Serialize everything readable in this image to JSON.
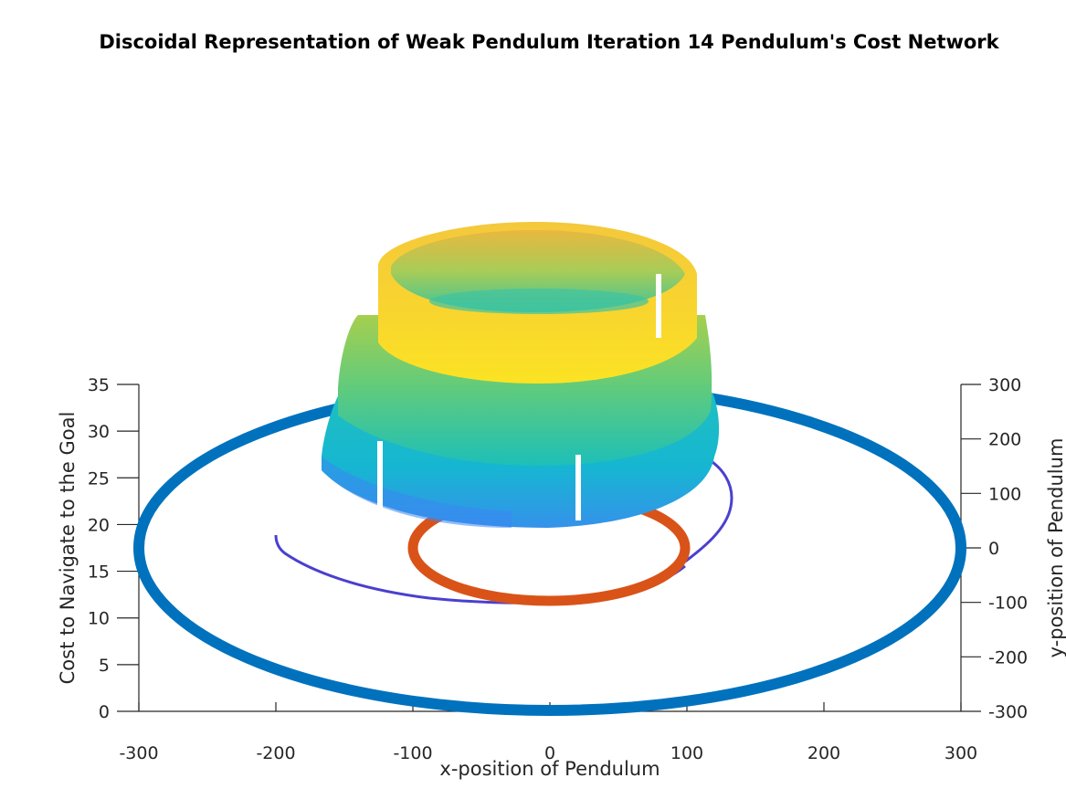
{
  "chart_data": {
    "type": "surface-3d",
    "title": "Discoidal Representation of Weak Pendulum Iteration 14 Pendulum's Cost Network",
    "xlabel": "x-position of Pendulum",
    "ylabel": "y-position of Pendulum",
    "zlabel": "Cost to Navigate to the Goal",
    "xlim": [
      -300,
      300
    ],
    "ylim": [
      -300,
      300
    ],
    "zlim": [
      0,
      35
    ],
    "x_ticks": [
      "-300",
      "-200",
      "-100",
      "0",
      "100",
      "200",
      "300"
    ],
    "y_ticks": [
      "300",
      "200",
      "100",
      "0",
      "-100",
      "-200",
      "-300"
    ],
    "z_ticks": [
      "35",
      "30",
      "25",
      "20",
      "15",
      "10",
      "5",
      "0"
    ],
    "colormap": "parula",
    "series": [
      {
        "kind": "ring",
        "radius": 300,
        "z": 0,
        "color": "#0072BD"
      },
      {
        "kind": "ring",
        "radius": 100,
        "z": 0,
        "color": "#D95319"
      },
      {
        "kind": "trajectory-spiral",
        "start": [
          -200,
          0
        ],
        "color": "#4B3FD0"
      },
      {
        "kind": "stacked-disc-surface",
        "layers": [
          {
            "radius": 140,
            "z_bottom": 19,
            "z_top": 27
          },
          {
            "radius": 125,
            "z_bottom": 24,
            "z_top": 30
          },
          {
            "radius": 115,
            "z_bottom": 28,
            "z_top": 35
          }
        ]
      }
    ]
  }
}
